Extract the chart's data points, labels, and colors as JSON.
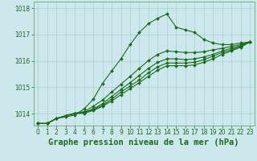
{
  "background_color": "#cce8ec",
  "grid_color": "#aacdd4",
  "line_color": "#1a6b1a",
  "title": "Graphe pression niveau de la mer (hPa)",
  "xlim": [
    -0.5,
    23.5
  ],
  "ylim": [
    1013.55,
    1018.25
  ],
  "yticks": [
    1014,
    1015,
    1016,
    1017,
    1018
  ],
  "xticks": [
    0,
    1,
    2,
    3,
    4,
    5,
    6,
    7,
    8,
    9,
    10,
    11,
    12,
    13,
    14,
    15,
    16,
    17,
    18,
    19,
    20,
    21,
    22,
    23
  ],
  "series": [
    [
      1013.63,
      1013.63,
      1013.82,
      1013.88,
      1013.95,
      1014.18,
      1014.55,
      1015.15,
      1015.62,
      1016.08,
      1016.62,
      1017.08,
      1017.42,
      1017.62,
      1017.78,
      1017.28,
      1017.18,
      1017.08,
      1016.82,
      1016.68,
      1016.62,
      1016.62,
      1016.68,
      1016.72
    ],
    [
      1013.63,
      1013.63,
      1013.82,
      1013.92,
      1014.02,
      1014.08,
      1014.28,
      1014.52,
      1014.82,
      1015.12,
      1015.42,
      1015.72,
      1016.02,
      1016.25,
      1016.38,
      1016.35,
      1016.32,
      1016.32,
      1016.35,
      1016.42,
      1016.48,
      1016.55,
      1016.62,
      1016.72
    ],
    [
      1013.63,
      1013.63,
      1013.82,
      1013.92,
      1014.02,
      1014.05,
      1014.18,
      1014.38,
      1014.65,
      1014.92,
      1015.18,
      1015.45,
      1015.72,
      1015.95,
      1016.08,
      1016.08,
      1016.05,
      1016.08,
      1016.15,
      1016.25,
      1016.38,
      1016.48,
      1016.58,
      1016.72
    ],
    [
      1013.63,
      1013.63,
      1013.82,
      1013.92,
      1014.0,
      1014.05,
      1014.15,
      1014.32,
      1014.55,
      1014.82,
      1015.05,
      1015.28,
      1015.55,
      1015.78,
      1015.92,
      1015.92,
      1015.92,
      1015.95,
      1016.05,
      1016.18,
      1016.32,
      1016.42,
      1016.55,
      1016.72
    ],
    [
      1013.63,
      1013.63,
      1013.82,
      1013.92,
      1014.0,
      1014.02,
      1014.12,
      1014.28,
      1014.48,
      1014.72,
      1014.95,
      1015.18,
      1015.42,
      1015.65,
      1015.82,
      1015.82,
      1015.82,
      1015.85,
      1015.95,
      1016.08,
      1016.25,
      1016.38,
      1016.52,
      1016.72
    ]
  ],
  "marker": "D",
  "markersize": 2.0,
  "linewidth": 0.8,
  "title_fontsize": 7.5,
  "tick_fontsize": 5.5,
  "title_color": "#1a6b1a",
  "tick_color": "#1a6b1a",
  "axis_color": "#5a9a5a"
}
